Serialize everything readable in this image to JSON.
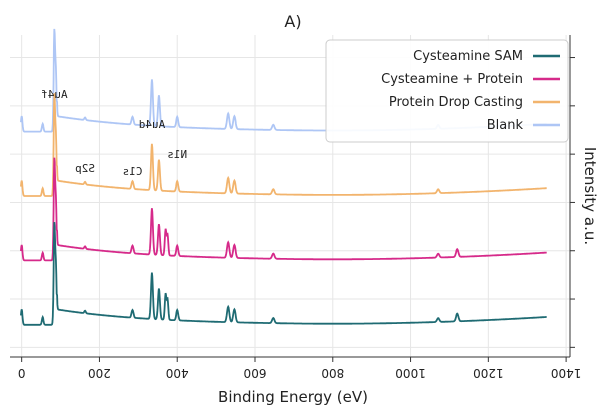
{
  "chart_data": {
    "type": "line",
    "title": "A)",
    "xlabel": "Binding Energy (eV)",
    "ylabel": "Intensity a.u.",
    "x_reversed": true,
    "xlim": [
      1410,
      -30
    ],
    "ylim": [
      0,
      100
    ],
    "xticks": [
      1400,
      1200,
      1000,
      800,
      600,
      400,
      200,
      0
    ],
    "grid": true,
    "legend_position": "upper-right",
    "series": [
      {
        "name": "Cysteamine SAM",
        "color": "#1f6b73",
        "baseline": 10
      },
      {
        "name": "Cysteamine + Protein",
        "color": "#d62a8a",
        "baseline": 30
      },
      {
        "name": "Protein Drop Casting",
        "color": "#f2b46d",
        "baseline": 50
      },
      {
        "name": "Blank",
        "color": "#aec6f5",
        "baseline": 70
      }
    ],
    "annotations": [
      {
        "text": "Au4f",
        "x": 84
      },
      {
        "text": "S2p",
        "x": 163
      },
      {
        "text": "C1s",
        "x": 285
      },
      {
        "text": "Au4d",
        "x": 335
      },
      {
        "text": "N1s",
        "x": 400
      }
    ]
  }
}
